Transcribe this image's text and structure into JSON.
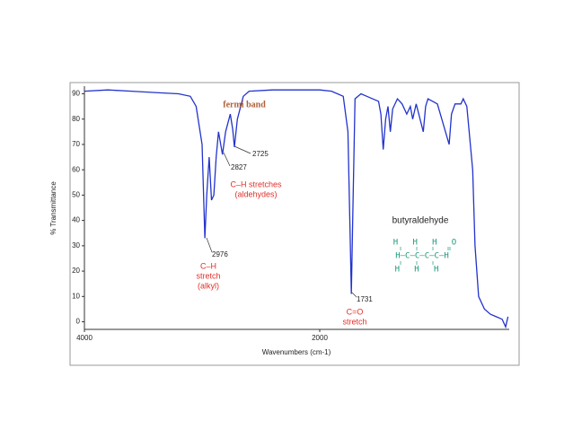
{
  "chart_data": {
    "type": "line",
    "y_label": "% Transmittance",
    "x_label": "Wavenumbers (cm-1)",
    "xlim": [
      4000,
      400
    ],
    "ylim": [
      -3,
      93
    ],
    "xticks": [
      4000,
      2000
    ],
    "yticks": [
      0,
      10,
      20,
      30,
      40,
      50,
      60,
      70,
      80,
      90
    ],
    "x": [
      4000,
      3800,
      3600,
      3400,
      3200,
      3100,
      3050,
      3000,
      2976,
      2960,
      2940,
      2920,
      2900,
      2880,
      2860,
      2827,
      2800,
      2760,
      2740,
      2725,
      2700,
      2650,
      2600,
      2400,
      2200,
      2000,
      1900,
      1800,
      1760,
      1740,
      1731,
      1720,
      1700,
      1650,
      1600,
      1500,
      1480,
      1460,
      1440,
      1420,
      1400,
      1380,
      1340,
      1300,
      1260,
      1230,
      1210,
      1180,
      1120,
      1100,
      1080,
      1000,
      900,
      880,
      850,
      800,
      780,
      750,
      700,
      680,
      650,
      600,
      550,
      500,
      450,
      420,
      400
    ],
    "series": [
      {
        "color": "#2233cc",
        "values": [
          91,
          91.5,
          91,
          90.5,
          90,
          89,
          85,
          70,
          33,
          50,
          65,
          48,
          50,
          65,
          75,
          66,
          75,
          82,
          76,
          69,
          80,
          89,
          91,
          91.5,
          91.5,
          91.5,
          91,
          89,
          75,
          30,
          11,
          40,
          88,
          90,
          89,
          87,
          82,
          68,
          80,
          85,
          75,
          84,
          88,
          86,
          82,
          85,
          80,
          86,
          75,
          85,
          88,
          86,
          70,
          82,
          86,
          86,
          88,
          85,
          60,
          30,
          10,
          5,
          3,
          2,
          1,
          -2,
          2
        ]
      }
    ],
    "annotations": [
      "fermi band",
      "2725",
      "2827",
      "C–H stretches",
      "(aldehydes)",
      "2976",
      "C–H",
      "stretch",
      "(alkyl)",
      "1731",
      "C=O",
      "stretch",
      "butyraldehyde"
    ],
    "molecule": [
      "H   H   H   O",
      "H–C–C–C–C–H",
      "H   H   H"
    ]
  }
}
